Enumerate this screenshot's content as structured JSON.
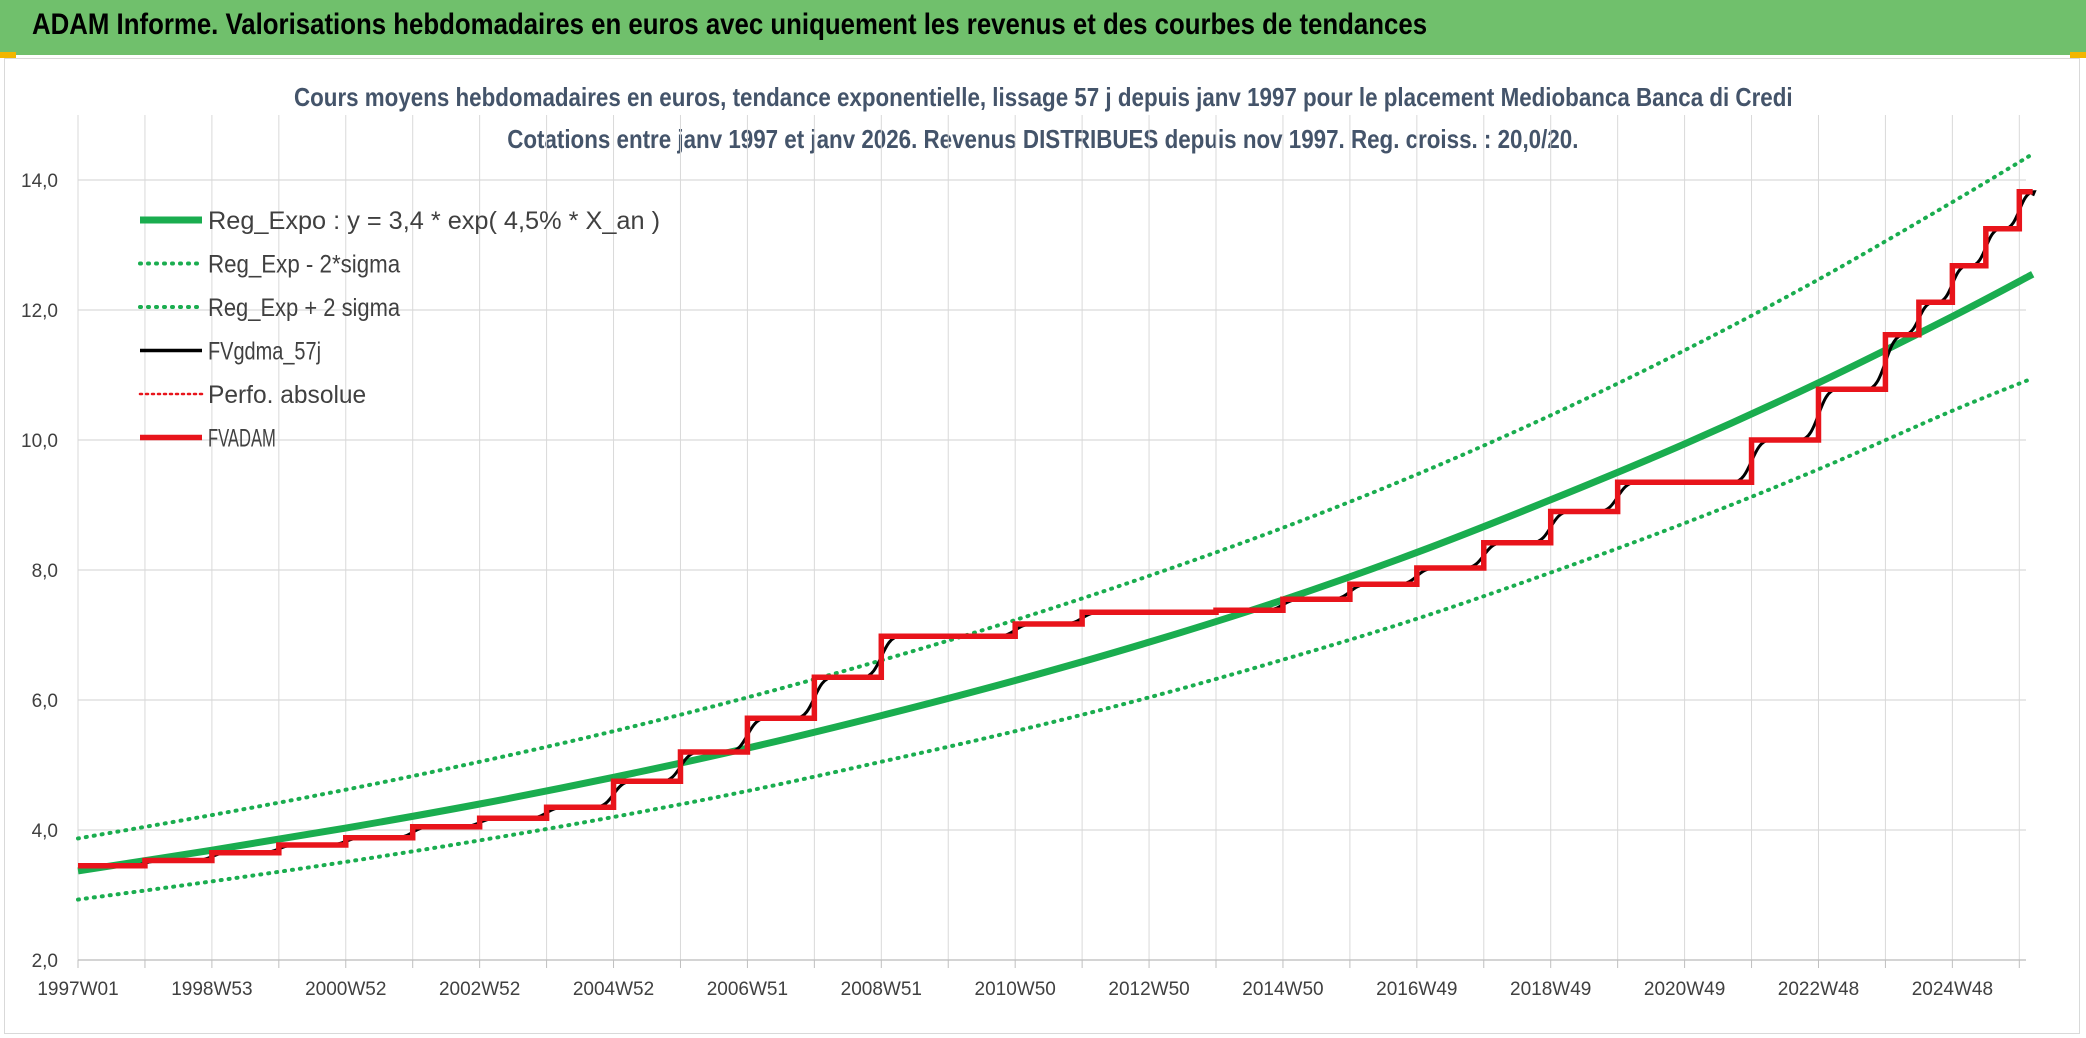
{
  "banner": {
    "title": "ADAM Informe. Valorisations hebdomadaires en euros avec uniquement les revenus et des courbes de tendances"
  },
  "colors": {
    "banner_bg": "#70c06c",
    "accent": "#f2b600",
    "trend": "#1aad4f",
    "gdma": "#000000",
    "fvadam": "#e8141b",
    "perfo": "#e8141b",
    "grid": "#d9d9d9",
    "title": "#44546a"
  },
  "chart_data": {
    "type": "line",
    "title": [
      "Cours moyens hebdomadaires en euros, tendance exponentielle, lissage 57 j depuis janv 1997 pour le placement Mediobanca Banca di Credi",
      "Cotations entre janv 1997 et janv 2026. Revenus DISTRIBUES depuis nov 1997. Reg. croiss. : 20,0/20."
    ],
    "xlabel": "",
    "ylabel": "",
    "x_range": [
      1997.0,
      2026.1
    ],
    "ylim": [
      2.0,
      15.0
    ],
    "y_ticks": [
      "2,0",
      "4,0",
      "6,0",
      "8,0",
      "10,0",
      "12,0",
      "14,0"
    ],
    "x_tick_labels": [
      {
        "label": "1997W01",
        "x": 1997.0
      },
      {
        "label": "1998W53",
        "x": 1999.0
      },
      {
        "label": "2000W52",
        "x": 2001.0
      },
      {
        "label": "2002W52",
        "x": 2003.0
      },
      {
        "label": "2004W52",
        "x": 2005.0
      },
      {
        "label": "2006W51",
        "x": 2007.0
      },
      {
        "label": "2008W51",
        "x": 2009.0
      },
      {
        "label": "2010W50",
        "x": 2011.0
      },
      {
        "label": "2012W50",
        "x": 2013.0
      },
      {
        "label": "2014W50",
        "x": 2015.0
      },
      {
        "label": "2016W49",
        "x": 2017.0
      },
      {
        "label": "2018W49",
        "x": 2019.0
      },
      {
        "label": "2020W49",
        "x": 2021.0
      },
      {
        "label": "2022W48",
        "x": 2023.0
      },
      {
        "label": "2024W48",
        "x": 2025.0
      }
    ],
    "grid": true,
    "legend_position": "top-left",
    "series": [
      {
        "name": "Reg_Expo : y = 3,4 * exp( 4,5% *  X_an )",
        "style": "solid-thick",
        "color": "#1aad4f",
        "x": [
          1997.0,
          1999.0,
          2001.0,
          2003.0,
          2005.0,
          2007.0,
          2009.0,
          2011.0,
          2013.0,
          2015.0,
          2017.0,
          2019.0,
          2021.0,
          2023.0,
          2025.0,
          2026.2
        ],
        "y": [
          3.37,
          3.69,
          4.03,
          4.4,
          4.81,
          5.26,
          5.76,
          6.3,
          6.89,
          7.54,
          8.27,
          9.08,
          9.94,
          10.88,
          11.9,
          12.55
        ]
      },
      {
        "name": "Reg_Exp - 2*sigma",
        "style": "dotted",
        "color": "#1aad4f",
        "x": [
          1997.0,
          1999.0,
          2001.0,
          2003.0,
          2005.0,
          2007.0,
          2009.0,
          2011.0,
          2013.0,
          2015.0,
          2017.0,
          2019.0,
          2021.0,
          2023.0,
          2025.0,
          2026.2
        ],
        "y": [
          2.93,
          3.21,
          3.51,
          3.84,
          4.2,
          4.6,
          5.05,
          5.52,
          6.04,
          6.62,
          7.25,
          7.96,
          8.72,
          9.55,
          10.45,
          10.95
        ]
      },
      {
        "name": "Reg_Exp + 2 sigma",
        "style": "dotted",
        "color": "#1aad4f",
        "x": [
          1997.0,
          1999.0,
          2001.0,
          2003.0,
          2005.0,
          2007.0,
          2009.0,
          2011.0,
          2013.0,
          2015.0,
          2017.0,
          2019.0,
          2021.0,
          2023.0,
          2025.0,
          2026.2
        ],
        "y": [
          3.87,
          4.23,
          4.62,
          5.05,
          5.52,
          6.04,
          6.61,
          7.23,
          7.91,
          8.65,
          9.47,
          10.38,
          11.38,
          12.47,
          13.66,
          14.4
        ]
      },
      {
        "name": "FVgdma_57j",
        "style": "smooth-steps",
        "color": "#000000",
        "steps": "same as FVADAM",
        "x": [],
        "y": []
      },
      {
        "name": "Perfo. absolue",
        "style": "dotted",
        "color": "#e8141b",
        "x": [],
        "y": []
      },
      {
        "name": "FVADAM",
        "style": "step",
        "color": "#e8141b",
        "x": [
          1997.0,
          1998.0,
          1999.0,
          2000.0,
          2001.0,
          2002.0,
          2003.0,
          2004.0,
          2005.0,
          2006.0,
          2007.0,
          2008.0,
          2009.0,
          2011.0,
          2012.0,
          2014.0,
          2015.0,
          2016.0,
          2017.0,
          2018.0,
          2019.0,
          2020.0,
          2021.0,
          2022.0,
          2023.0,
          2024.0,
          2024.5,
          2025.0,
          2025.5,
          2026.0
        ],
        "y": [
          3.45,
          3.53,
          3.65,
          3.77,
          3.88,
          4.05,
          4.18,
          4.35,
          4.75,
          5.2,
          5.72,
          6.35,
          6.98,
          7.17,
          7.35,
          7.38,
          7.55,
          7.78,
          8.03,
          8.42,
          8.9,
          9.35,
          9.35,
          10.0,
          10.78,
          11.62,
          12.12,
          12.68,
          13.25,
          13.82
        ],
        "end_x": 2026.2
      }
    ]
  }
}
